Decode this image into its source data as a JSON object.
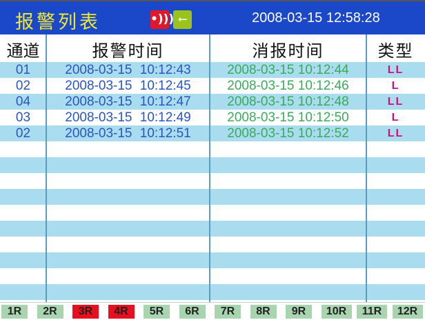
{
  "header": {
    "title": "报警列表",
    "alarm_icon": "alarm-sound-icon",
    "usb_icon": "usb-icon",
    "datetime": "2008-03-15 12:58:28",
    "colors": {
      "bg": "#1b48c9",
      "title": "#f2e830"
    }
  },
  "columns": [
    "通道",
    "报警时间",
    "消报时间",
    "类型"
  ],
  "rows": [
    {
      "channel": "01",
      "alarm_time": "2008-03-15  10:12:43",
      "clear_time": "2008-03-15 10:12:44",
      "type": "LL"
    },
    {
      "channel": "02",
      "alarm_time": "2008-03-15  10:12:45",
      "clear_time": "2008-03-15 10:12:46",
      "type": "L"
    },
    {
      "channel": "04",
      "alarm_time": "2008-03-15  10:12:47",
      "clear_time": "2008-03-15 10:12:48",
      "type": "LL"
    },
    {
      "channel": "03",
      "alarm_time": "2008-03-15  10:12:49",
      "clear_time": "2008-03-15 10:12:50",
      "type": "L"
    },
    {
      "channel": "02",
      "alarm_time": "2008-03-15  10:12:51",
      "clear_time": "2008-03-15 10:12:52",
      "type": "LL"
    }
  ],
  "relays": [
    {
      "label": "1R",
      "active": false
    },
    {
      "label": "2R",
      "active": false
    },
    {
      "label": "3R",
      "active": true
    },
    {
      "label": "4R",
      "active": true
    },
    {
      "label": "5R",
      "active": false
    },
    {
      "label": "6R",
      "active": false
    },
    {
      "label": "7R",
      "active": false
    },
    {
      "label": "8R",
      "active": false
    },
    {
      "label": "9R",
      "active": false
    },
    {
      "label": "10R",
      "active": false
    },
    {
      "label": "11R",
      "active": false
    },
    {
      "label": "12R",
      "active": false
    }
  ]
}
